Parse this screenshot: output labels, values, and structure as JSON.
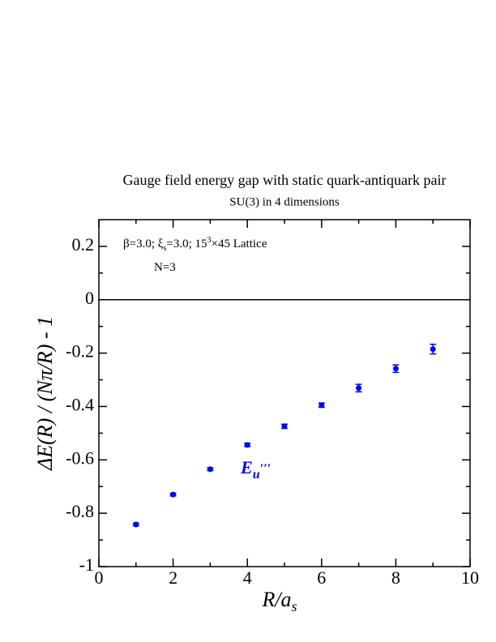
{
  "chart_data": {
    "type": "scatter",
    "title": "Gauge field energy gap with static quark-antiquark pair",
    "subtitle": "SU(3) in 4 dimensions",
    "xlabel": [
      "R/a",
      "s"
    ],
    "ylabel": "ΔE(R) / (Nπ/R) - 1",
    "annotations": [
      [
        "β=3.0;  ξ",
        "s",
        "=3.0;  15",
        "3",
        "×45 Lattice"
      ],
      [
        "N=3"
      ]
    ],
    "series": [
      {
        "name": [
          "E",
          "u",
          "′′′"
        ],
        "color": "#0000ff",
        "x": [
          1,
          2,
          3,
          4,
          5,
          6,
          7,
          8,
          9
        ],
        "values": [
          -0.842,
          -0.73,
          -0.635,
          -0.544,
          -0.474,
          -0.395,
          -0.331,
          -0.258,
          -0.185
        ],
        "errors": [
          0.005,
          0.005,
          0.005,
          0.006,
          0.008,
          0.008,
          0.014,
          0.014,
          0.018
        ]
      }
    ],
    "xlim": [
      0,
      10
    ],
    "xticks": [
      0,
      2,
      4,
      6,
      8,
      10
    ],
    "xminorticks": [
      1,
      3,
      5,
      7,
      9
    ],
    "ylim": [
      -1,
      0.3
    ],
    "yticks": [
      -1,
      -0.8,
      -0.6,
      -0.4,
      -0.2,
      0,
      0.2
    ],
    "yminorticks": [
      -0.9,
      -0.7,
      -0.5,
      -0.3,
      -0.1,
      0.1
    ],
    "zero_line": true
  }
}
